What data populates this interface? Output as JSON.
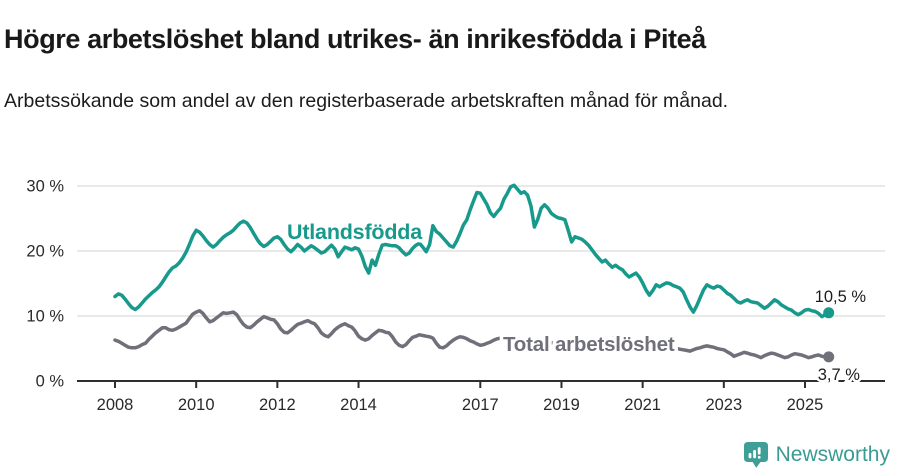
{
  "chart_data": {
    "type": "line",
    "title": "Högre arbetslöshet bland utrikes- än inrikesfödda i Piteå",
    "subtitle": "Arbetssökande som andel av den registerbaserade arbetskraften månad för månad.",
    "unit": "%",
    "x_start_year": 2008,
    "frequency": "monthly",
    "grid": "horizontal",
    "legend": "inline-labels",
    "ylim": [
      0,
      31
    ],
    "y_ticks": [
      {
        "value": 0,
        "label": "0 %"
      },
      {
        "value": 10,
        "label": "10 %"
      },
      {
        "value": 20,
        "label": "20 %"
      },
      {
        "value": 30,
        "label": "30 %"
      }
    ],
    "x_ticks": [
      {
        "value": 2008,
        "label": "2008"
      },
      {
        "value": 2010,
        "label": "2010"
      },
      {
        "value": 2012,
        "label": "2012"
      },
      {
        "value": 2014,
        "label": "2014"
      },
      {
        "value": 2017,
        "label": "2017"
      },
      {
        "value": 2019,
        "label": "2019"
      },
      {
        "value": 2021,
        "label": "2021"
      },
      {
        "value": 2023,
        "label": "2023"
      },
      {
        "value": 2025,
        "label": "2025"
      }
    ],
    "series": [
      {
        "name": "Utlandsfödda",
        "color": "#17998c",
        "end_label": "10,5 %",
        "end_value": 10.5,
        "values": [
          13.0,
          13.4,
          13.2,
          12.6,
          11.9,
          11.3,
          11.0,
          11.4,
          12.0,
          12.6,
          13.1,
          13.6,
          14.0,
          14.5,
          15.2,
          16.0,
          16.8,
          17.4,
          17.7,
          18.2,
          18.9,
          19.8,
          21.0,
          22.3,
          23.2,
          22.9,
          22.3,
          21.6,
          21.0,
          20.6,
          21.0,
          21.6,
          22.1,
          22.5,
          22.8,
          23.2,
          23.8,
          24.3,
          24.6,
          24.3,
          23.6,
          22.7,
          21.8,
          21.1,
          20.7,
          21.0,
          21.5,
          22.0,
          22.2,
          21.8,
          21.0,
          20.3,
          19.9,
          20.4,
          21.0,
          20.6,
          20.0,
          20.4,
          20.8,
          20.5,
          20.1,
          19.7,
          19.9,
          20.4,
          20.9,
          20.3,
          19.1,
          19.9,
          20.6,
          20.4,
          20.2,
          20.5,
          20.3,
          19.2,
          17.6,
          16.6,
          18.6,
          17.8,
          19.5,
          20.9,
          21.0,
          20.9,
          20.8,
          20.8,
          20.5,
          19.9,
          19.4,
          19.7,
          20.4,
          20.9,
          21.2,
          20.6,
          19.9,
          21.0,
          23.9,
          23.0,
          22.6,
          22.0,
          21.4,
          20.8,
          20.6,
          21.5,
          22.7,
          24.0,
          24.8,
          26.3,
          27.7,
          29.0,
          28.9,
          28.0,
          27.1,
          25.9,
          25.3,
          26.0,
          26.6,
          28.0,
          28.9,
          29.9,
          30.1,
          29.5,
          28.9,
          29.1,
          28.6,
          26.9,
          23.7,
          24.9,
          26.6,
          27.1,
          26.6,
          25.8,
          25.4,
          25.1,
          25.0,
          24.8,
          23.2,
          21.4,
          22.2,
          22.0,
          21.8,
          21.4,
          20.9,
          20.2,
          19.5,
          18.9,
          18.3,
          18.6,
          18.0,
          17.5,
          17.8,
          17.4,
          17.1,
          16.5,
          16.0,
          16.3,
          16.6,
          16.0,
          15.1,
          14.0,
          13.2,
          13.9,
          14.8,
          14.5,
          14.8,
          15.1,
          15.0,
          14.7,
          14.5,
          14.3,
          13.7,
          12.5,
          11.4,
          10.6,
          11.6,
          12.8,
          14.0,
          14.8,
          14.5,
          14.3,
          14.6,
          14.5,
          14.0,
          13.5,
          13.2,
          12.7,
          12.2,
          12.0,
          12.3,
          12.5,
          12.2,
          12.1,
          12.0,
          11.6,
          11.2,
          11.5,
          12.0,
          12.5,
          12.2,
          11.7,
          11.4,
          11.1,
          10.9,
          10.5,
          10.2,
          10.5,
          10.9,
          11.0,
          10.8,
          10.7,
          10.4,
          9.9,
          10.2,
          10.5
        ]
      },
      {
        "name": "Total arbetslöshet",
        "color": "#70707a",
        "end_label": "3,7 %",
        "end_value": 3.7,
        "values": [
          6.3,
          6.1,
          5.8,
          5.5,
          5.2,
          5.1,
          5.1,
          5.3,
          5.6,
          5.8,
          6.4,
          6.9,
          7.4,
          7.8,
          8.2,
          8.2,
          7.9,
          7.8,
          8.0,
          8.3,
          8.6,
          8.9,
          9.6,
          10.3,
          10.6,
          10.8,
          10.4,
          9.7,
          9.1,
          9.3,
          9.7,
          10.1,
          10.5,
          10.4,
          10.5,
          10.6,
          10.2,
          9.4,
          8.7,
          8.3,
          8.2,
          8.6,
          9.1,
          9.5,
          9.9,
          9.7,
          9.5,
          9.4,
          8.8,
          8.0,
          7.5,
          7.4,
          7.8,
          8.3,
          8.7,
          8.9,
          9.1,
          9.3,
          9.0,
          8.8,
          8.2,
          7.4,
          7.0,
          6.8,
          7.3,
          7.9,
          8.3,
          8.6,
          8.8,
          8.5,
          8.3,
          7.7,
          6.9,
          6.5,
          6.3,
          6.5,
          7.0,
          7.4,
          7.8,
          7.7,
          7.5,
          7.4,
          6.8,
          6.0,
          5.5,
          5.3,
          5.6,
          6.2,
          6.7,
          6.9,
          7.1,
          7.0,
          6.9,
          6.8,
          6.6,
          5.8,
          5.2,
          5.1,
          5.4,
          5.9,
          6.3,
          6.6,
          6.8,
          6.7,
          6.5,
          6.2,
          6.0,
          5.7,
          5.5,
          5.6,
          5.8,
          6.0,
          6.3,
          6.5,
          6.6,
          6.5,
          6.4,
          6.3,
          6.1,
          6.0,
          5.8,
          5.7,
          5.7,
          5.8,
          6.0,
          6.1,
          6.2,
          6.1,
          6.0,
          5.9,
          5.8,
          5.7,
          5.6,
          5.5,
          5.4,
          5.6,
          5.8,
          5.9,
          6.0,
          5.9,
          5.8,
          5.7,
          5.7,
          5.8,
          5.9,
          6.1,
          6.3,
          6.5,
          6.7,
          6.7,
          6.6,
          6.5,
          6.3,
          6.1,
          6.0,
          5.9,
          5.7,
          5.5,
          5.4,
          5.3,
          5.3,
          5.4,
          5.5,
          5.4,
          5.3,
          5.1,
          5.0,
          4.9,
          4.8,
          4.7,
          4.6,
          4.8,
          5.0,
          5.1,
          5.3,
          5.4,
          5.3,
          5.2,
          5.0,
          4.9,
          4.8,
          4.5,
          4.2,
          3.8,
          4.0,
          4.2,
          4.4,
          4.3,
          4.1,
          4.0,
          3.8,
          3.6,
          3.9,
          4.1,
          4.3,
          4.2,
          4.0,
          3.8,
          3.6,
          3.7,
          4.0,
          4.2,
          4.1,
          4.0,
          3.8,
          3.6,
          3.7,
          3.9,
          4.0,
          3.8,
          3.7,
          3.7
        ]
      }
    ],
    "colors": {
      "grid": "#e2e2e2",
      "axis": "#2e2e2e",
      "tick_text": "#2a2a2a",
      "value_label_text": "#1c1c1c"
    }
  },
  "footer": {
    "brand": "Newsworthy",
    "brand_color": "#3a9b92"
  }
}
